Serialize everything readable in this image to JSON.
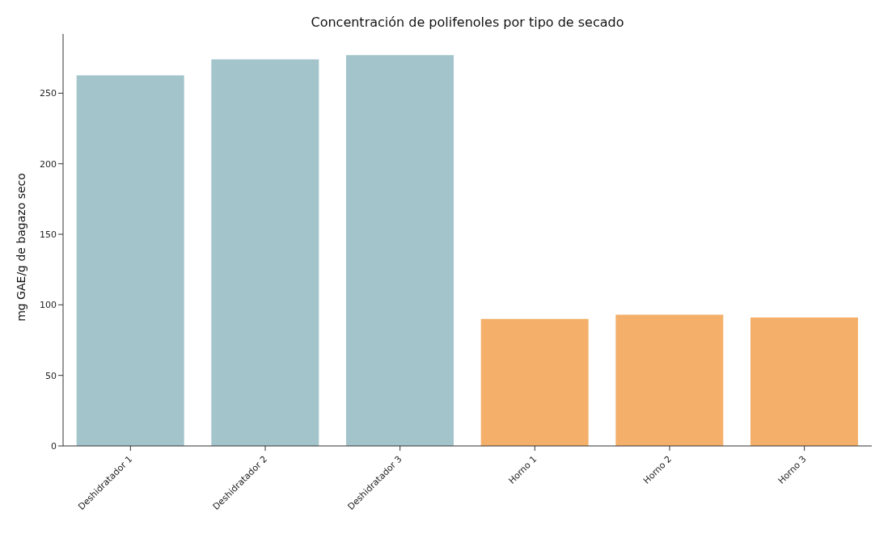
{
  "chart_data": {
    "type": "bar",
    "title": "Concentración de polifenoles por tipo de secado",
    "ylabel": "mg GAE/g de bagazo seco",
    "categories": [
      "Deshidratador 1",
      "Deshidratador 2",
      "Deshidratador 3",
      "Horno 1",
      "Horno 2",
      "Horno 3"
    ],
    "values": [
      262.6,
      274,
      277,
      90,
      93,
      91
    ],
    "colors": [
      "#a3c4cb",
      "#a3c4cb",
      "#a3c4cb",
      "#f4b06a",
      "#f4b06a",
      "#f4b06a"
    ],
    "ylim": [
      0,
      292
    ],
    "yticks": [
      0,
      50,
      100,
      150,
      200,
      250
    ],
    "grid": false
  }
}
